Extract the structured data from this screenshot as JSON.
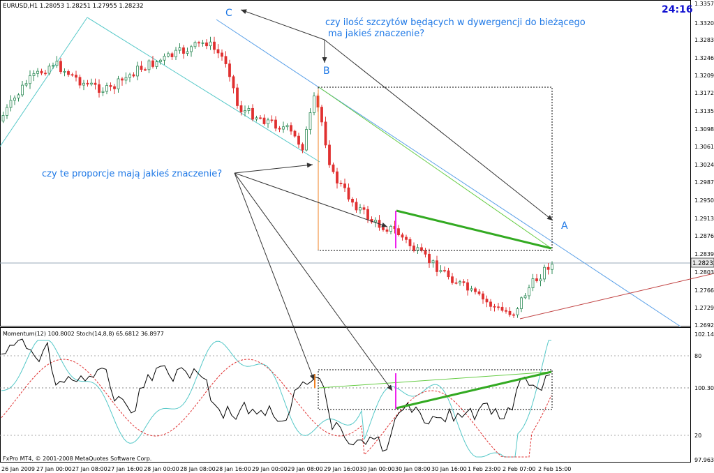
{
  "main_panel": {
    "header": "EURUSD,H1  1.28053  1.28251  1.27955  1.28232",
    "clock": "24:16",
    "current_price": "1.28232",
    "price_ticks": [
      "1.33570",
      "1.33200",
      "1.32830",
      "1.32460",
      "1.32090",
      "1.31720",
      "1.31350",
      "1.30980",
      "1.30610",
      "1.30240",
      "1.29870",
      "1.29500",
      "1.29130",
      "1.28760",
      "1.28390",
      "1.28030",
      "1.27660",
      "1.27290",
      "1.26920"
    ],
    "annotation_top_line1": "czy ilość szczytów będących w dywergencji do bieżącego",
    "annotation_top_line2": "ma jakieś znaczenie?",
    "annotation_left": "czy te proporcje mają jakieś znaczenie?",
    "label_A": "A",
    "label_B": "B",
    "label_C": "C"
  },
  "indicator_panel": {
    "header": "Momentum(12) 100.8002  Stoch(14,8,8) 65.6812 36.8977",
    "ticks": [
      "102.145",
      "80",
      "100.3046",
      "20",
      "97.963"
    ]
  },
  "time_axis": [
    "26 Jan 2009",
    "27 Jan 00:00",
    "27 Jan 08:00",
    "27 Jan 16:00",
    "28 Jan 00:00",
    "28 Jan 08:00",
    "28 Jan 16:00",
    "29 Jan 00:00",
    "29 Jan 08:00",
    "29 Jan 16:00",
    "30 Jan 00:00",
    "30 Jan 08:00",
    "30 Jan 16:00",
    "1 Feb 23:00",
    "2 Feb 07:00",
    "2 Feb 15:00"
  ],
  "copyright": "FxPro MT4, © 2001-2008 MetaQuotes Software Corp.",
  "colors": {
    "bull": "#2e8b57",
    "bear": "#e03030",
    "annotation_text": "#1e78e6",
    "clock": "#1010d0",
    "channel": "#55c8c8",
    "blue_trend": "#5aa0e8",
    "red_trend": "#c04040",
    "green": "#33aa22",
    "magenta": "#ee22ee",
    "orange": "#f08020"
  }
}
